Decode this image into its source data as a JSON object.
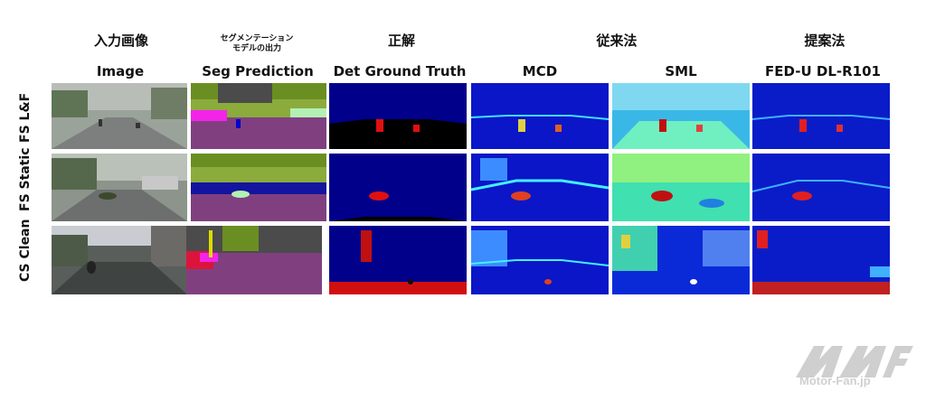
{
  "header_jp": {
    "image": "入力画像",
    "seg_line1": "セグメンテーション",
    "seg_line2": "モデルの出力",
    "gt": "正解",
    "conventional": "従来法",
    "proposed": "提案法"
  },
  "columns": [
    "Image",
    "Seg Prediction",
    "Det Ground Truth",
    "MCD",
    "SML",
    "FED-U DL-R101"
  ],
  "rows": [
    "FS L&F",
    "FS Static",
    "CS Clean"
  ],
  "watermark": {
    "brand_text": "Motor-Fan.jp"
  }
}
